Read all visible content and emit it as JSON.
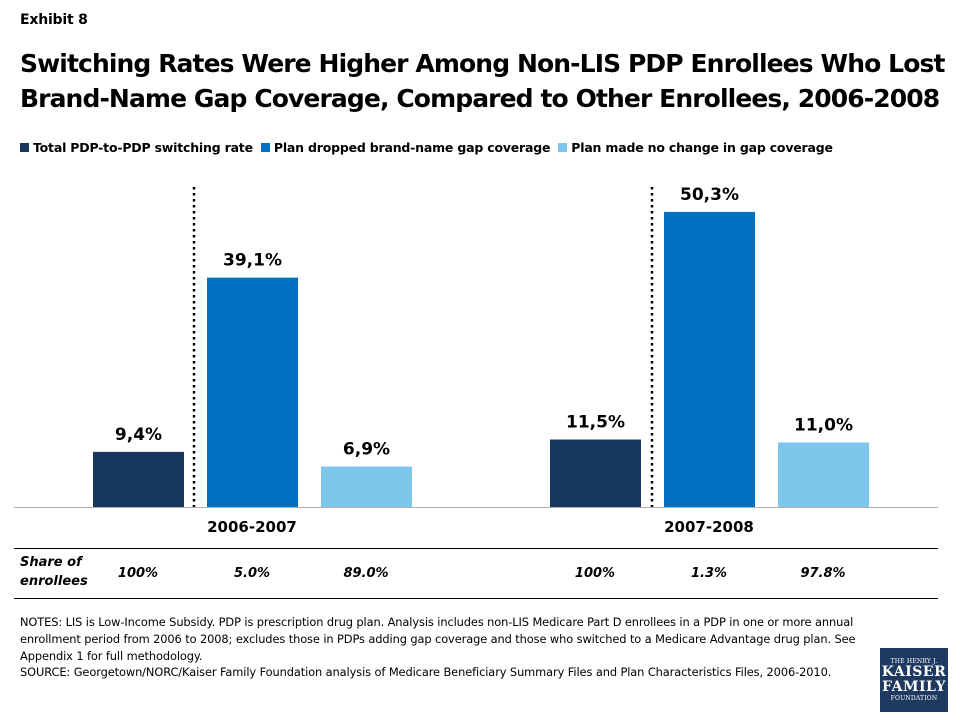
{
  "header": {
    "exhibit": "Exhibit 8",
    "title_line1": "Switching Rates Were Higher Among Non-LIS PDP Enrollees Who Lost",
    "title_line2": "Brand-Name Gap Coverage, Compared to Other Enrollees, 2006-2008"
  },
  "chart_data": {
    "type": "bar",
    "categories": [
      "2006-2007",
      "2007-2008"
    ],
    "series": [
      {
        "name": "Total PDP-to-PDP switching rate",
        "values": [
          9.4,
          11.5
        ],
        "labels": [
          "9,4%",
          "11,5%"
        ],
        "color": "#17375e"
      },
      {
        "name": "Plan dropped brand-name gap coverage",
        "values": [
          39.1,
          50.3
        ],
        "labels": [
          "39,1%",
          "50,3%"
        ],
        "color": "#0070c0"
      },
      {
        "name": "Plan made no change in gap coverage",
        "values": [
          6.9,
          11.0
        ],
        "labels": [
          "6,9%",
          "11,0%"
        ],
        "color": "#7fc6ec"
      }
    ],
    "ylim": [
      0,
      60
    ],
    "grid": false,
    "legend": "top"
  },
  "share": {
    "label_line1": "Share of",
    "label_line2": "enrollees",
    "values": [
      "100%",
      "5.0%",
      "89.0%",
      "100%",
      "1.3%",
      "97.8%"
    ]
  },
  "notes": {
    "notes_text": "NOTES: LIS is Low-Income Subsidy. PDP is prescription drug plan. Analysis includes non-LIS Medicare Part D enrollees in a PDP in one or more annual enrollment period from 2006 to 2008; excludes those in PDPs adding gap coverage and those who switched to a Medicare Advantage drug plan. See Appendix 1 for full methodology.",
    "source_text": "SOURCE: Georgetown/NORC/Kaiser Family Foundation analysis of Medicare Beneficiary Summary Files and Plan Characteristics Files, 2006-2010."
  },
  "logo": {
    "line1": "THE HENRY J.",
    "line2": "KAISER",
    "line3": "FAMILY",
    "line4": "FOUNDATION"
  }
}
